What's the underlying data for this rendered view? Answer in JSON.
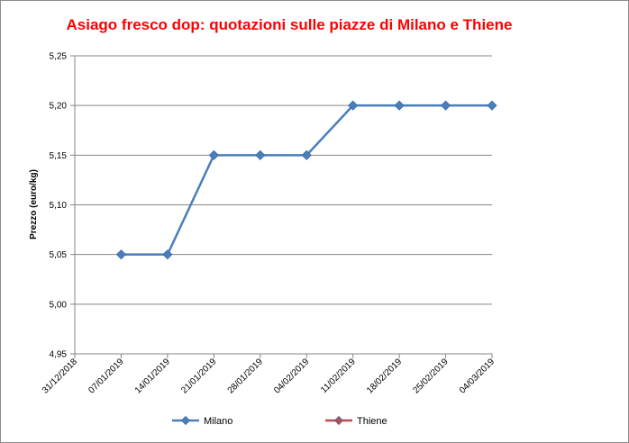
{
  "chart_data": {
    "type": "line",
    "title": "Asiago fresco dop: quotazioni sulle piazze di Milano e Thiene",
    "ylabel": "Prezzo (euro/kg)",
    "xlabel": "",
    "categories": [
      "31/12/2018",
      "07/01/2019",
      "14/01/2019",
      "21/01/2019",
      "28/01/2019",
      "04/02/2019",
      "11/02/2019",
      "18/02/2019",
      "25/02/2019",
      "04/03/2019"
    ],
    "y_ticks": [
      "4,95",
      "5,00",
      "5,05",
      "5,10",
      "5,15",
      "5,20",
      "5,25"
    ],
    "ylim": [
      4.95,
      5.25
    ],
    "grid": "horizontal",
    "legend": "bottom",
    "series": [
      {
        "name": "Milano",
        "color": "#4a7ebb",
        "marker": "diamond",
        "values": [
          null,
          5.05,
          5.05,
          5.15,
          5.15,
          5.15,
          5.2,
          5.2,
          5.2,
          5.2
        ]
      },
      {
        "name": "Thiene",
        "color": "#be4b48",
        "marker": "diamond",
        "values": [
          null,
          null,
          null,
          null,
          null,
          null,
          null,
          null,
          null,
          null
        ]
      }
    ]
  }
}
